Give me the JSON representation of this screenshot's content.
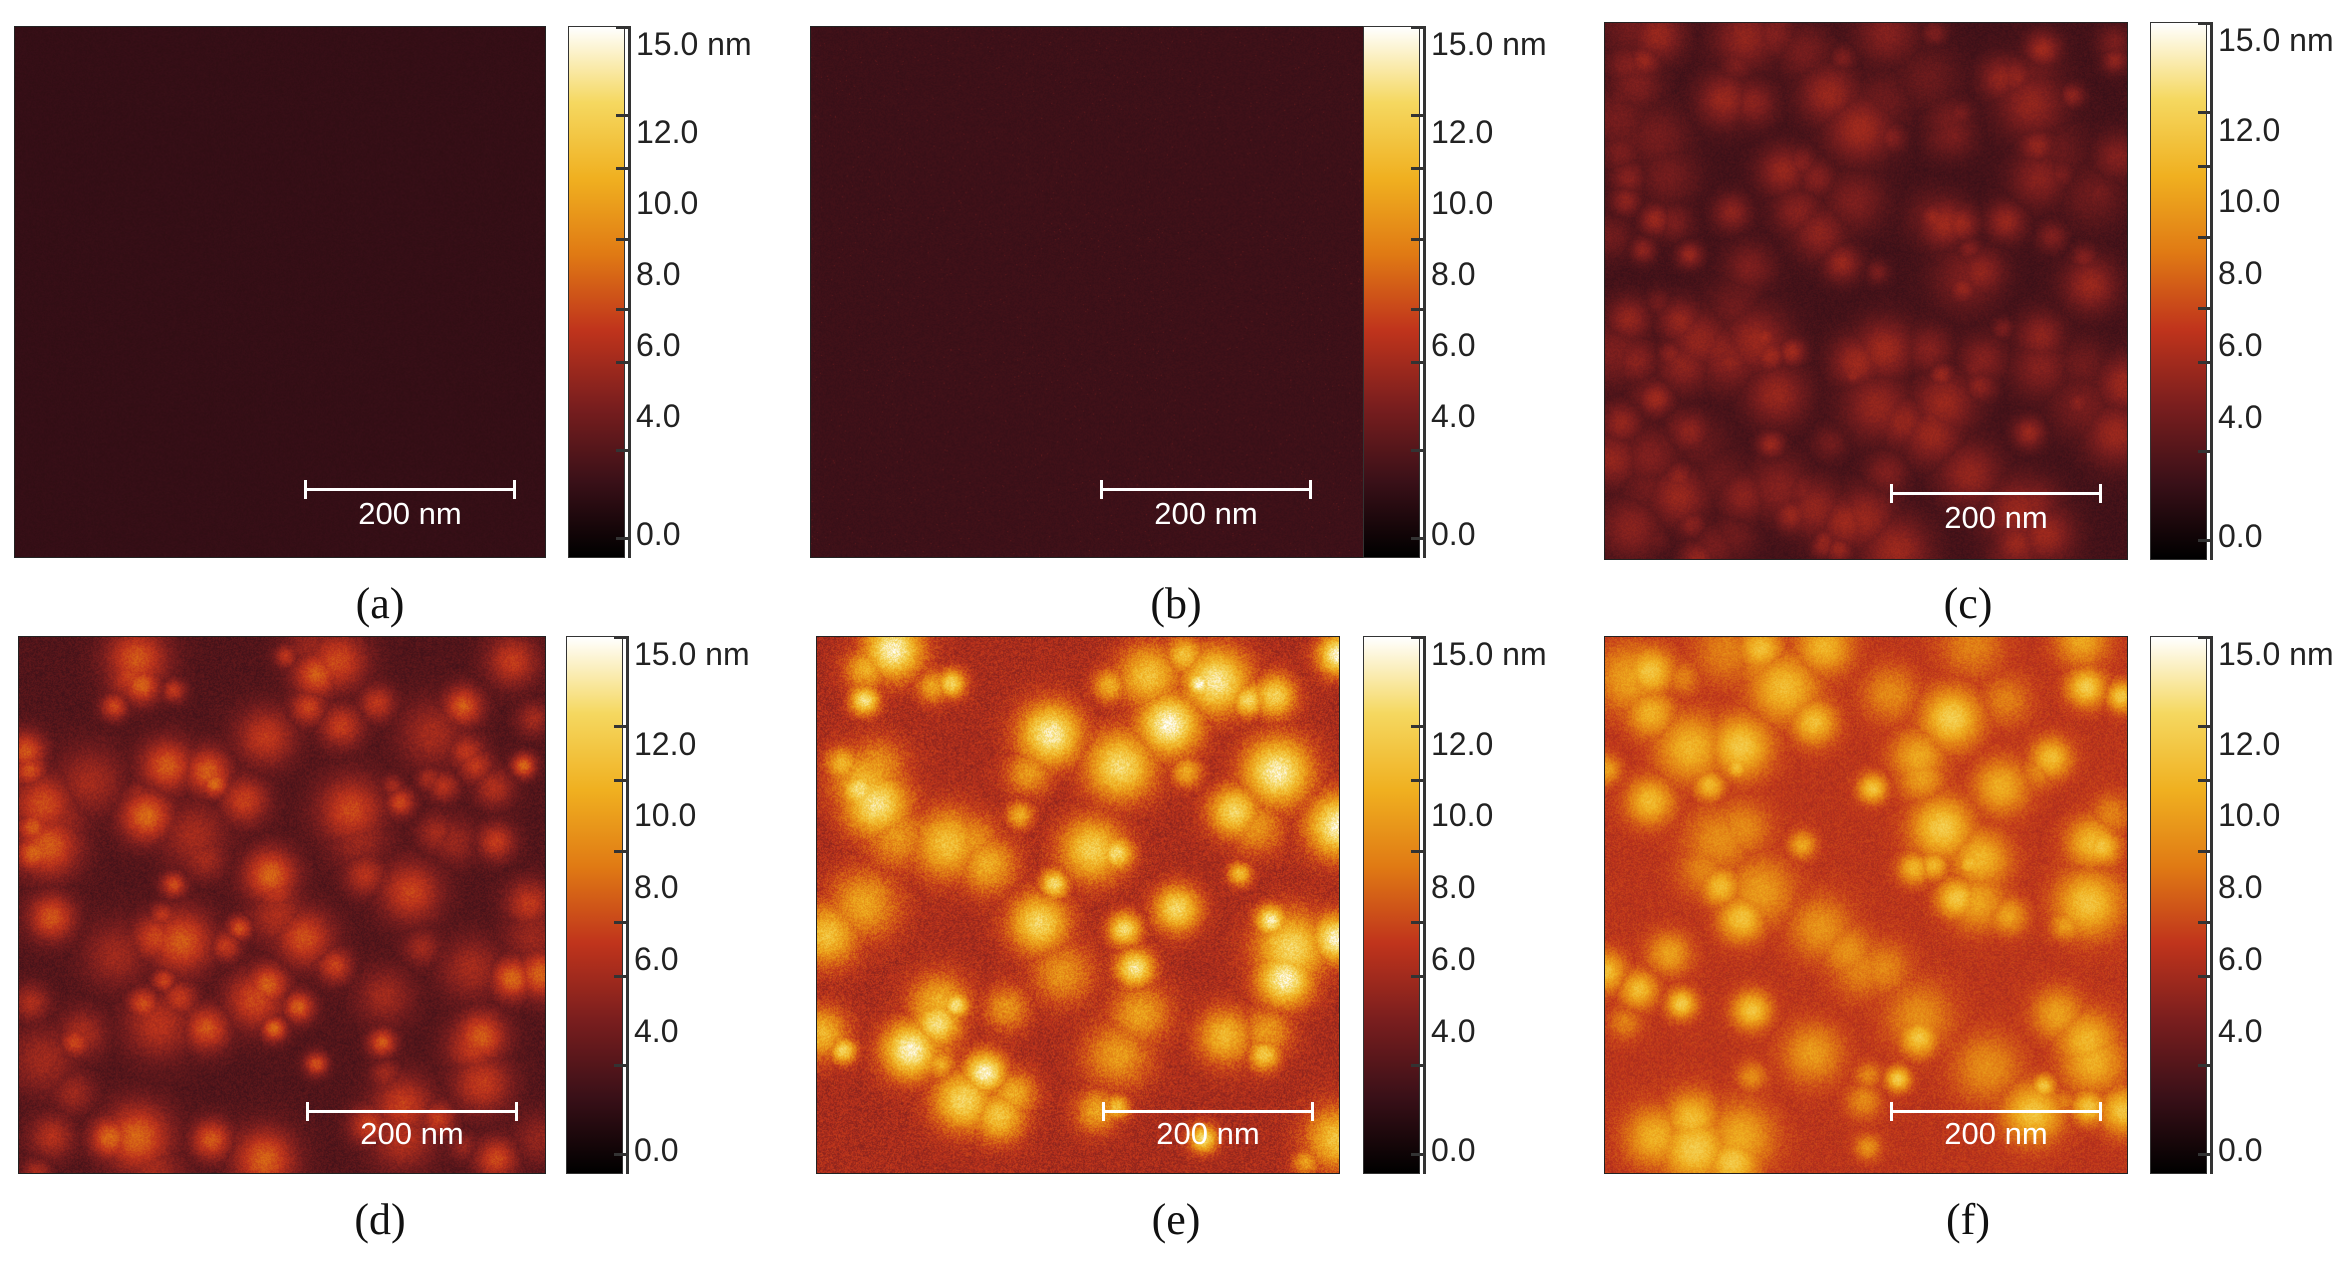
{
  "colorbar": {
    "top_label": "15.0 nm",
    "labels": [
      "12.0",
      "10.0",
      "8.0",
      "6.0",
      "4.0",
      "0.0"
    ],
    "scale_max": 15.0,
    "colors": [
      "#000000",
      "#3a1018",
      "#7a1e1e",
      "#c0341c",
      "#e07a14",
      "#f0b020",
      "#f5d860",
      "#ffffff"
    ]
  },
  "scale_bar_label": "200 nm",
  "panels": [
    {
      "caption": "(a)",
      "seed": 11,
      "mode": "noise",
      "base": 0.13,
      "amp": 0.02,
      "grains": 0
    },
    {
      "caption": "(b)",
      "seed": 23,
      "mode": "speckle",
      "base": 0.15,
      "amp": 0.03,
      "grains": 0
    },
    {
      "caption": "(c)",
      "seed": 37,
      "mode": "grains",
      "base": 0.24,
      "amp": 0.1,
      "grains": 170
    },
    {
      "caption": "(d)",
      "seed": 41,
      "mode": "grains",
      "base": 0.33,
      "amp": 0.17,
      "grains": 110
    },
    {
      "caption": "(e)",
      "seed": 53,
      "mode": "grains",
      "base": 0.62,
      "amp": 0.3,
      "grains": 75
    },
    {
      "caption": "(f)",
      "seed": 67,
      "mode": "grains",
      "base": 0.58,
      "amp": 0.2,
      "grains": 85
    }
  ]
}
